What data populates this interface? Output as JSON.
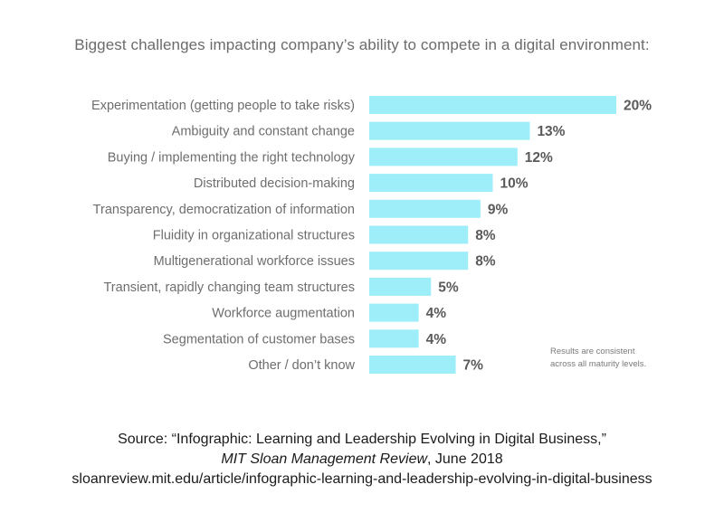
{
  "chart_data": {
    "type": "bar",
    "orientation": "horizontal",
    "title": "Biggest challenges impacting company’s ability to compete in a digital environment:",
    "categories": [
      "Experimentation (getting people to take risks)",
      "Ambiguity and constant change",
      "Buying / implementing the right technology",
      "Distributed decision-making",
      "Transparency, democratization of information",
      "Fluidity in organizational structures",
      "Multigenerational workforce issues",
      "Transient, rapidly changing team structures",
      "Workforce augmentation",
      "Segmentation of customer bases",
      "Other / don’t know"
    ],
    "values": [
      20,
      13,
      12,
      10,
      9,
      8,
      8,
      5,
      4,
      4,
      7
    ],
    "value_labels": [
      "20%",
      "13%",
      "12%",
      "10%",
      "9%",
      "8%",
      "8%",
      "5%",
      "4%",
      "4%",
      "7%"
    ],
    "unit": "%",
    "xlim": [
      0,
      20
    ],
    "xlabel": "",
    "ylabel": "",
    "bar_color": "#9deef8",
    "grid": false,
    "legend": null
  },
  "note": {
    "line1": "Results are consistent",
    "line2": "across all maturity levels."
  },
  "source": {
    "line1": "Source: “Infographic: Learning and Leadership Evolving in Digital Business,”",
    "publication": "MIT Sloan Management Review",
    "date": ", June 2018",
    "url": "sloanreview.mit.edu/article/infographic-learning-and-leadership-evolving-in-digital-business"
  }
}
